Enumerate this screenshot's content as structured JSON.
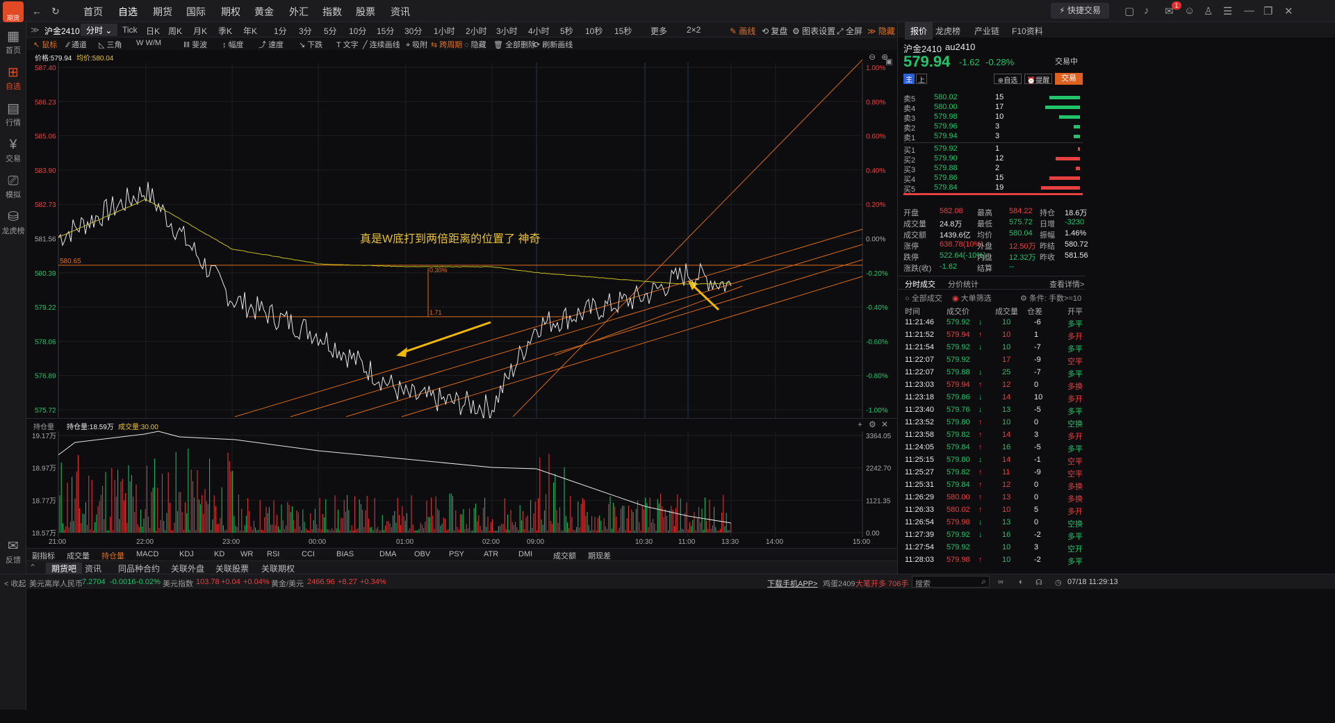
{
  "app": {
    "logo_label": "期货"
  },
  "nav": {
    "items": [
      "首页",
      "自选",
      "期货",
      "国际",
      "期权",
      "黄金",
      "外汇",
      "指数",
      "股票",
      "资讯"
    ],
    "active": 1,
    "quick_trade": "快捷交易",
    "badge": "1"
  },
  "sidebar": {
    "items": [
      {
        "label": "首页",
        "icon": "home-icon"
      },
      {
        "label": "自选",
        "icon": "plus-square-icon"
      },
      {
        "label": "行情",
        "icon": "chart-icon"
      },
      {
        "label": "交易",
        "icon": "yen-icon"
      },
      {
        "label": "模拟",
        "icon": "gamepad-icon"
      },
      {
        "label": "龙虎榜",
        "icon": "database-icon"
      }
    ],
    "bottom": "反馈",
    "active": 1
  },
  "toolbar1": {
    "symbol": "沪金2410",
    "period_active": "分时",
    "periods": [
      "Tick",
      "日K",
      "周K",
      "月K",
      "季K",
      "年K",
      "1分",
      "3分",
      "5分",
      "10分",
      "15分",
      "30分",
      "1小时",
      "2小时",
      "3小时",
      "4小时",
      "5秒",
      "10秒",
      "15秒",
      "更多",
      "2×2"
    ],
    "draw": "画线",
    "review": "复盘",
    "settings": "图表设置",
    "fullscreen": "全屏",
    "hide": "隐藏"
  },
  "toolbar2": {
    "items": [
      "鼠标",
      "通道",
      "三角",
      "W/M",
      "斐波",
      "幅度",
      "速度",
      "下跌",
      "文字",
      "连续画线",
      "吸附",
      "跨周期",
      "隐藏",
      "全部删除",
      "刷新画线"
    ]
  },
  "chart": {
    "price_label": "价格:579.94",
    "avg_label": "均价:580.04",
    "y_left": [
      "587.40",
      "586.23",
      "585.06",
      "583.90",
      "582.73",
      "581.56",
      "580.39",
      "579.22",
      "578.06",
      "576.89",
      "575.72"
    ],
    "y_right": [
      "1.00%",
      "0.80%",
      "0.60%",
      "0.40%",
      "0.20%",
      "0.00%",
      "-0.20%",
      "-0.40%",
      "-0.60%",
      "-0.80%",
      "-1.00%"
    ],
    "hline_label": "580.65",
    "fib_top": "0.30%",
    "fib_bot": "1.71",
    "annotation": "真是W底打到两倍距离的位置了 神奇",
    "x_labels": [
      "21:00",
      "22:00",
      "23:00",
      "00:00",
      "01:00",
      "02:00",
      "09:00",
      "10:30",
      "11:00",
      "13:30",
      "14:00",
      "15:00"
    ]
  },
  "chart_data": {
    "type": "line",
    "title": "沪金2410 分时",
    "ylim": [
      575.72,
      587.4
    ],
    "x": [
      "21:00",
      "22:00",
      "23:00",
      "00:00",
      "01:00",
      "02:00",
      "09:00",
      "10:30",
      "11:00",
      "11:29"
    ],
    "series": [
      {
        "name": "价格",
        "values": [
          581.6,
          583.2,
          579.5,
          578.3,
          576.2,
          575.8,
          578.6,
          579.6,
          580.4,
          579.94
        ]
      },
      {
        "name": "均价",
        "values": [
          581.6,
          582.9,
          581.2,
          580.7,
          580.6,
          580.6,
          580.4,
          580.1,
          580.0,
          580.04
        ]
      }
    ]
  },
  "subchart": {
    "oi_label": "持仓量",
    "oi_value": "持仓量:18.59万",
    "vol_value": "成交量:30.00",
    "y_left": [
      "19.17万",
      "18.97万",
      "18.77万",
      "18.57万"
    ],
    "y_right": [
      "3364.05",
      "2242.70",
      "1121.35",
      "0.00"
    ]
  },
  "indicators": [
    "副指标",
    "成交量",
    "持仓量",
    "MACD",
    "KDJ",
    "KD",
    "WR",
    "RSI",
    "CCI",
    "BIAS",
    "DMA",
    "OBV",
    "PSY",
    "ATR",
    "DMI",
    "成交额",
    "期现差"
  ],
  "bottom_tabs": [
    "期货吧",
    "资讯",
    "同品种合约",
    "关联外盘",
    "关联股票",
    "关联期权"
  ],
  "status": {
    "collapse": "< 收起",
    "usdcnh_name": "美元离岸人民币",
    "usdcnh": "7.2704",
    "usdcnh_chg": "-0.0016",
    "usdcnh_pct": "-0.02%",
    "dxy_name": "美元指数",
    "dxy": "103.78",
    "dxy_chg": "+0.04",
    "dxy_pct": "+0.04%",
    "gold_name": "黄金/美元",
    "gold": "2466.96",
    "gold_chg": "+8.27",
    "gold_pct": "+0.34%",
    "download": "下载手机APP>",
    "news": "鸡蛋2409",
    "news_hl": "大笔开多 706手",
    "search": "搜索",
    "datetime": "07/18 11:29:13"
  },
  "right": {
    "tabs": [
      "报价",
      "龙虎榜",
      "产业链",
      "F10资料"
    ],
    "name": "沪金2410",
    "code": "au2410",
    "price": "579.94",
    "chg": "-1.62",
    "pct": "-0.28%",
    "trading": "交易中",
    "btn_main": "主",
    "btn_up": "上",
    "btn_fav": "自选",
    "btn_alert": "提醒",
    "btn_trade": "交易",
    "asks": [
      {
        "l": "卖5",
        "p": "580.02",
        "v": "15",
        "w": 0.79
      },
      {
        "l": "卖4",
        "p": "580.00",
        "v": "17",
        "w": 0.89
      },
      {
        "l": "卖3",
        "p": "579.98",
        "v": "10",
        "w": 0.53
      },
      {
        "l": "卖2",
        "p": "579.96",
        "v": "3",
        "w": 0.16
      },
      {
        "l": "卖1",
        "p": "579.94",
        "v": "3",
        "w": 0.16
      }
    ],
    "bids": [
      {
        "l": "买1",
        "p": "579.92",
        "v": "1",
        "w": 0.05
      },
      {
        "l": "买2",
        "p": "579.90",
        "v": "12",
        "w": 0.63
      },
      {
        "l": "买3",
        "p": "579.88",
        "v": "2",
        "w": 0.11
      },
      {
        "l": "买4",
        "p": "579.86",
        "v": "15",
        "w": 0.79
      },
      {
        "l": "买5",
        "p": "579.84",
        "v": "19",
        "w": 1.0
      }
    ],
    "stats": [
      [
        "开盘",
        "582.08",
        "最高",
        "584.22",
        "持仓",
        "18.6万"
      ],
      [
        "成交量",
        "24.8万",
        "最低",
        "575.72",
        "日增",
        "-3230"
      ],
      [
        "成交额",
        "1439.6亿",
        "均价",
        "580.04",
        "振幅",
        "1.46%"
      ],
      [
        "涨停",
        "638.78(10%)",
        "外盘",
        "12.50万",
        "昨结",
        "580.72"
      ],
      [
        "跌停",
        "522.64(-10%)",
        "内盘",
        "12.32万",
        "昨收",
        "581.56"
      ],
      [
        "涨跌(收)",
        "-1.62",
        "结算",
        "--",
        "",
        ""
      ]
    ],
    "trade_tabs": [
      "分时成交",
      "分价统计",
      "查看详情>"
    ],
    "filter_all": "全部成交",
    "filter_big": "大单筛选",
    "filter_cond": "条件: 手数>=10",
    "trade_headers": [
      "时间",
      "成交价",
      "成交量",
      "仓差",
      "开平"
    ],
    "trades": [
      [
        "11:21:46",
        "579.92",
        "↓",
        "10",
        "-6",
        "多平",
        "g"
      ],
      [
        "11:21:52",
        "579.94",
        "↑",
        "10",
        "1",
        "多开",
        "r"
      ],
      [
        "11:21:54",
        "579.92",
        "↓",
        "10",
        "-7",
        "多平",
        "g"
      ],
      [
        "11:22:07",
        "579.92",
        "",
        "17",
        "-9",
        "空平",
        "r"
      ],
      [
        "11:22:07",
        "579.88",
        "↓",
        "25",
        "-7",
        "多平",
        "g"
      ],
      [
        "11:23:03",
        "579.94",
        "↑",
        "12",
        "0",
        "多换",
        "r"
      ],
      [
        "11:23:18",
        "579.86",
        "↓",
        "14",
        "10",
        "多开",
        "r"
      ],
      [
        "11:23:40",
        "579.76",
        "↓",
        "13",
        "-5",
        "多平",
        "g"
      ],
      [
        "11:23:52",
        "579.80",
        "↑",
        "10",
        "0",
        "空换",
        "g"
      ],
      [
        "11:23:58",
        "579.82",
        "↑",
        "14",
        "3",
        "多开",
        "r"
      ],
      [
        "11:24:05",
        "579.84",
        "↑",
        "16",
        "-5",
        "多平",
        "g"
      ],
      [
        "11:25:15",
        "579.80",
        "↓",
        "14",
        "-1",
        "空平",
        "r"
      ],
      [
        "11:25:27",
        "579.82",
        "↑",
        "11",
        "-9",
        "空平",
        "r"
      ],
      [
        "11:25:31",
        "579.84",
        "↑",
        "12",
        "0",
        "多换",
        "r"
      ],
      [
        "11:26:29",
        "580.00",
        "↑",
        "13",
        "0",
        "多换",
        "r"
      ],
      [
        "11:26:33",
        "580.02",
        "↑",
        "10",
        "5",
        "多开",
        "r"
      ],
      [
        "11:26:54",
        "579.98",
        "↓",
        "13",
        "0",
        "空换",
        "g"
      ],
      [
        "11:27:39",
        "579.92",
        "↓",
        "16",
        "-2",
        "多平",
        "g"
      ],
      [
        "11:27:54",
        "579.92",
        "",
        "10",
        "3",
        "空开",
        "g"
      ],
      [
        "11:28:03",
        "579.98",
        "↑",
        "10",
        "-2",
        "多平",
        "g"
      ]
    ]
  }
}
